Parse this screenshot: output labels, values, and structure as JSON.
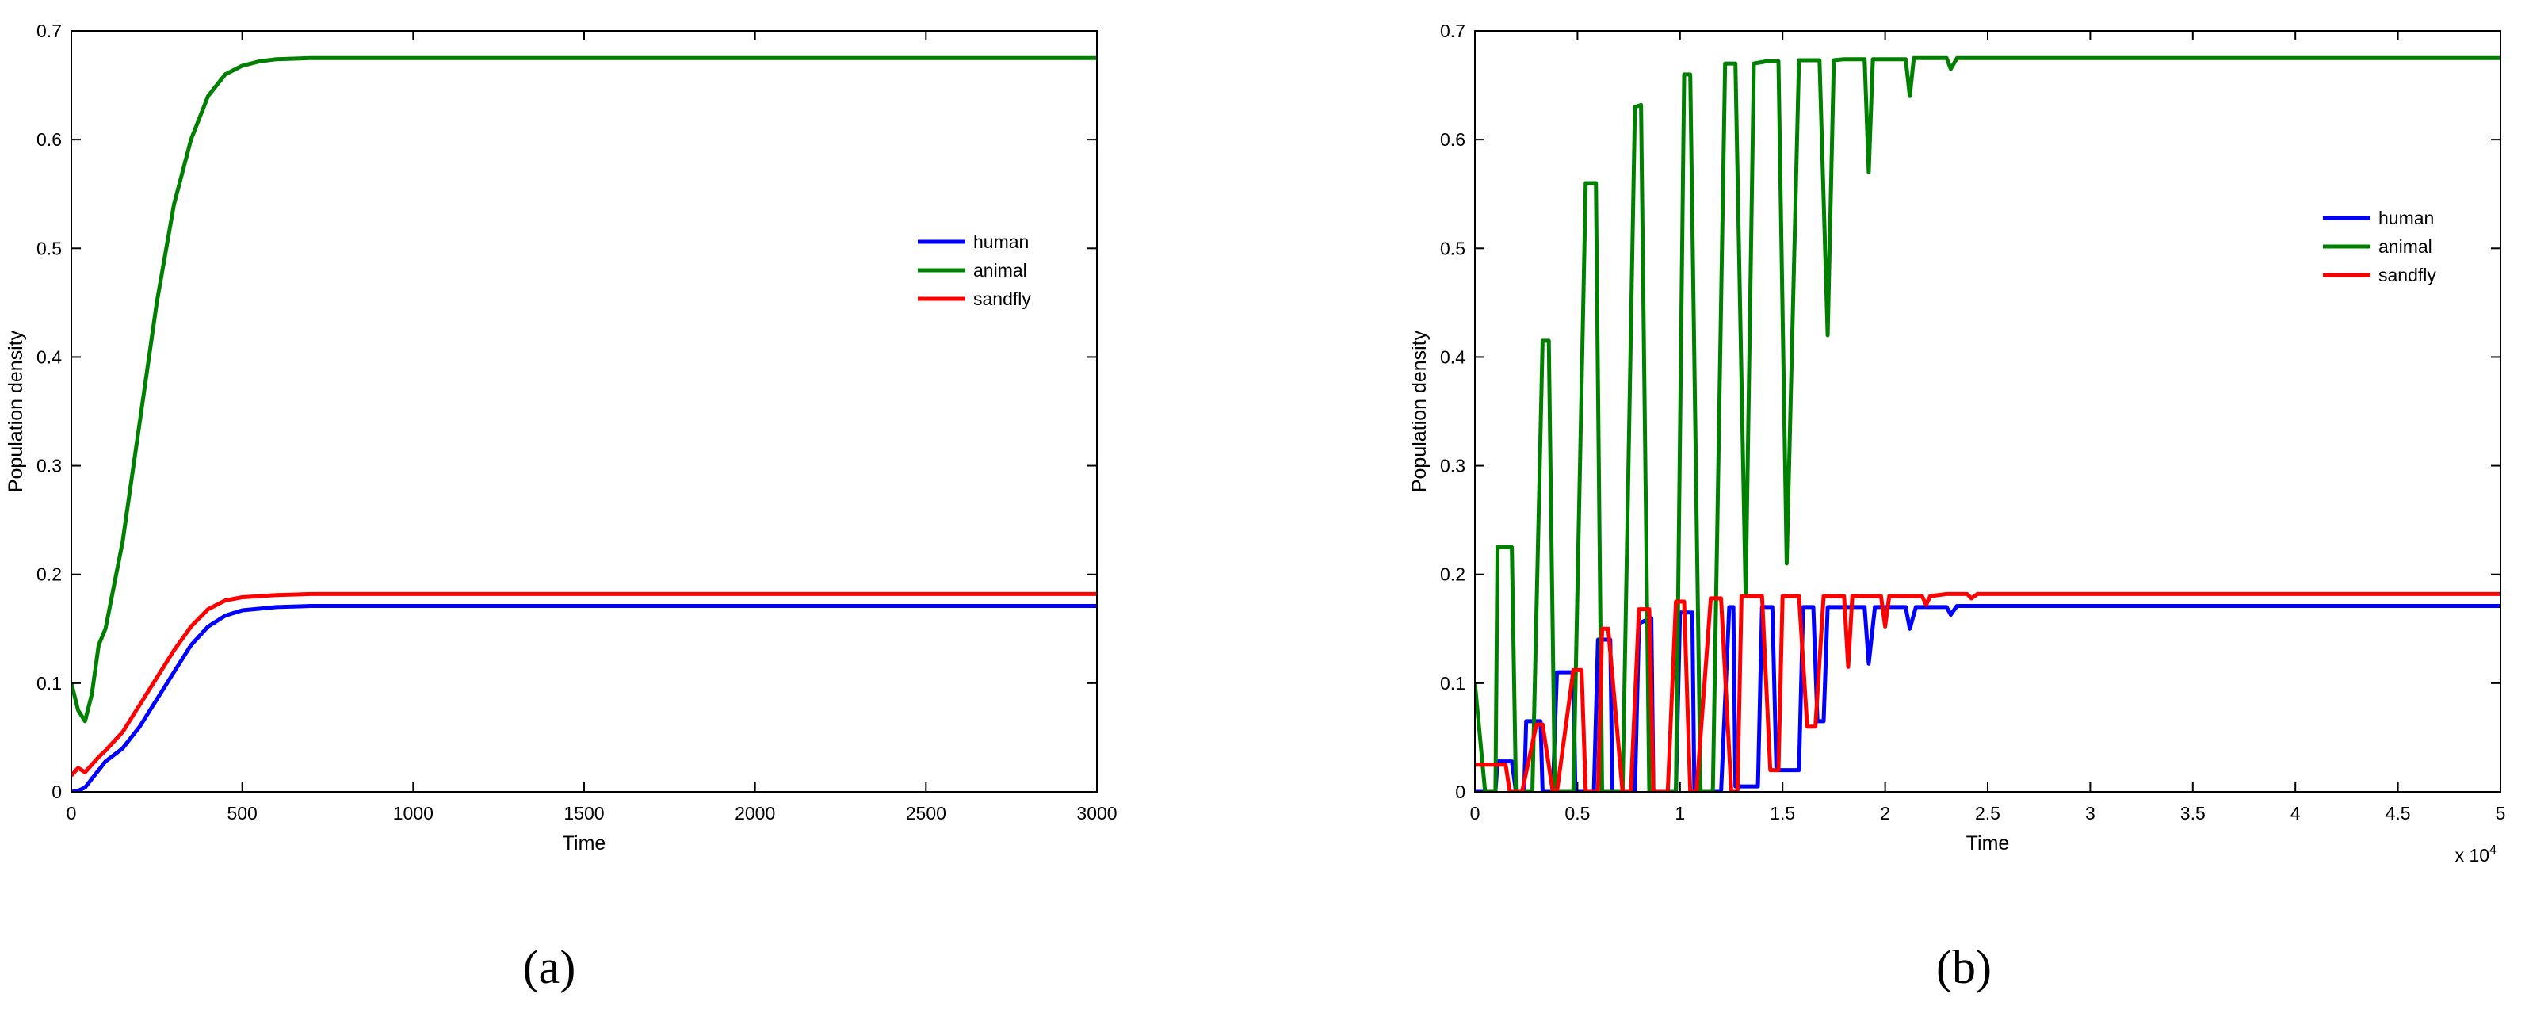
{
  "chart_data": [
    {
      "type": "line",
      "panel_label": "(a)",
      "title": "",
      "xlabel": "Time",
      "ylabel": "Population density",
      "xlim": [
        0,
        3000
      ],
      "ylim": [
        0,
        0.7
      ],
      "xticks": [
        0,
        500,
        1000,
        1500,
        2000,
        2500,
        3000
      ],
      "xtick_labels": [
        "0",
        "500",
        "1000",
        "1500",
        "2000",
        "2500",
        "3000"
      ],
      "yticks": [
        0,
        0.1,
        0.2,
        0.3,
        0.4,
        0.5,
        0.6,
        0.7
      ],
      "ytick_labels": [
        "0",
        "0.1",
        "0.2",
        "0.3",
        "0.4",
        "0.5",
        "0.6",
        "0.7"
      ],
      "x_exponent_label": "",
      "grid": false,
      "legend_position": "right",
      "series": [
        {
          "name": "human",
          "color": "#0000ff",
          "x": [
            0,
            20,
            40,
            60,
            80,
            100,
            150,
            200,
            250,
            300,
            350,
            400,
            450,
            500,
            600,
            700,
            800,
            1000,
            3000
          ],
          "y": [
            0,
            0.001,
            0.004,
            0.012,
            0.02,
            0.028,
            0.04,
            0.06,
            0.085,
            0.11,
            0.135,
            0.152,
            0.162,
            0.167,
            0.17,
            0.171,
            0.171,
            0.171,
            0.171
          ]
        },
        {
          "name": "animal",
          "color": "#008000",
          "x": [
            0,
            20,
            40,
            60,
            80,
            100,
            150,
            200,
            250,
            300,
            350,
            400,
            450,
            500,
            550,
            600,
            700,
            800,
            1000,
            3000
          ],
          "y": [
            0.1,
            0.075,
            0.065,
            0.09,
            0.135,
            0.15,
            0.23,
            0.34,
            0.45,
            0.54,
            0.6,
            0.64,
            0.66,
            0.668,
            0.672,
            0.674,
            0.675,
            0.675,
            0.675,
            0.675
          ]
        },
        {
          "name": "sandfly",
          "color": "#ff0000",
          "x": [
            0,
            20,
            40,
            60,
            80,
            100,
            150,
            200,
            250,
            300,
            350,
            400,
            450,
            500,
            600,
            700,
            800,
            1000,
            3000
          ],
          "y": [
            0.015,
            0.022,
            0.018,
            0.025,
            0.032,
            0.038,
            0.055,
            0.08,
            0.105,
            0.13,
            0.152,
            0.168,
            0.176,
            0.179,
            0.181,
            0.182,
            0.182,
            0.182,
            0.182
          ]
        }
      ]
    },
    {
      "type": "line",
      "panel_label": "(b)",
      "title": "",
      "xlabel": "Time",
      "ylabel": "Population density",
      "xlim": [
        0,
        50000
      ],
      "ylim": [
        0,
        0.7
      ],
      "xticks": [
        0,
        5000,
        10000,
        15000,
        20000,
        25000,
        30000,
        35000,
        40000,
        45000,
        50000
      ],
      "xtick_labels": [
        "0",
        "0.5",
        "1",
        "1.5",
        "2",
        "2.5",
        "3",
        "3.5",
        "4",
        "4.5",
        "5"
      ],
      "yticks": [
        0,
        0.1,
        0.2,
        0.3,
        0.4,
        0.5,
        0.6,
        0.7
      ],
      "ytick_labels": [
        "0",
        "0.1",
        "0.2",
        "0.3",
        "0.4",
        "0.5",
        "0.6",
        "0.7"
      ],
      "x_exponent_label": "x 10",
      "x_exponent_power": "4",
      "grid": false,
      "legend_position": "right",
      "series": [
        {
          "name": "human",
          "color": "#0000ff",
          "x": [
            0,
            1000,
            1100,
            1800,
            2000,
            2400,
            2500,
            3200,
            3300,
            3800,
            4000,
            4800,
            4900,
            5800,
            6000,
            6600,
            6700,
            7800,
            8000,
            8600,
            8700,
            9800,
            10000,
            10600,
            10700,
            12000,
            12400,
            12600,
            12700,
            13800,
            14000,
            14500,
            14700,
            15800,
            16000,
            16500,
            16700,
            17000,
            17200,
            18000,
            19000,
            19200,
            19500,
            20000,
            21000,
            21200,
            21500,
            23000,
            23200,
            23500,
            25000,
            50000
          ],
          "y": [
            0,
            0,
            0.028,
            0.028,
            0,
            0,
            0.065,
            0.065,
            0,
            0,
            0.11,
            0.11,
            0,
            0,
            0.14,
            0.14,
            0,
            0,
            0.155,
            0.16,
            0,
            0,
            0.165,
            0.165,
            0,
            0,
            0.17,
            0.17,
            0.005,
            0.005,
            0.17,
            0.17,
            0.02,
            0.02,
            0.17,
            0.17,
            0.065,
            0.065,
            0.17,
            0.17,
            0.17,
            0.118,
            0.17,
            0.17,
            0.17,
            0.15,
            0.17,
            0.17,
            0.163,
            0.171,
            0.171,
            0.171
          ]
        },
        {
          "name": "animal",
          "color": "#008000",
          "x": [
            0,
            500,
            1000,
            1100,
            1800,
            2000,
            2200,
            2800,
            3300,
            3600,
            3900,
            4200,
            4800,
            5400,
            5900,
            6200,
            6500,
            7200,
            7800,
            8100,
            8500,
            9000,
            9800,
            10200,
            10500,
            11000,
            11600,
            12200,
            12700,
            13200,
            13600,
            14200,
            14800,
            15200,
            15800,
            16300,
            16800,
            17200,
            17500,
            18000,
            19000,
            19200,
            19400,
            20000,
            21000,
            21200,
            21400,
            22500,
            23000,
            23200,
            23500,
            25000,
            50000
          ],
          "y": [
            0.1,
            0.0,
            0.0,
            0.225,
            0.225,
            0.0,
            0.0,
            0.0,
            0.415,
            0.415,
            0.0,
            0.0,
            0.0,
            0.56,
            0.56,
            0.0,
            0.0,
            0.0,
            0.63,
            0.632,
            0.0,
            0.0,
            0.0,
            0.66,
            0.66,
            0.0,
            0.0,
            0.67,
            0.67,
            0.18,
            0.67,
            0.672,
            0.672,
            0.21,
            0.673,
            0.673,
            0.673,
            0.42,
            0.673,
            0.674,
            0.674,
            0.57,
            0.674,
            0.674,
            0.674,
            0.64,
            0.675,
            0.675,
            0.675,
            0.665,
            0.675,
            0.675,
            0.675
          ]
        },
        {
          "name": "sandfly",
          "color": "#ff0000",
          "x": [
            0,
            1500,
            1700,
            2300,
            3000,
            3300,
            3800,
            4000,
            4800,
            5200,
            5400,
            6000,
            6200,
            6500,
            7200,
            7600,
            8000,
            8500,
            8700,
            9400,
            9800,
            10200,
            10500,
            10800,
            11500,
            12000,
            12500,
            12800,
            13000,
            14000,
            14400,
            14800,
            15000,
            15800,
            16200,
            16600,
            17000,
            17500,
            18000,
            18200,
            18400,
            19000,
            19800,
            20000,
            20200,
            21000,
            21800,
            22000,
            22200,
            23000,
            24000,
            24200,
            24500,
            50000
          ],
          "y": [
            0.025,
            0.025,
            0.0,
            0.0,
            0.062,
            0.062,
            0.0,
            0.0,
            0.112,
            0.112,
            0.0,
            0.0,
            0.15,
            0.15,
            0.0,
            0.0,
            0.168,
            0.168,
            0.0,
            0.0,
            0.175,
            0.175,
            0.0,
            0.0,
            0.178,
            0.178,
            0.0,
            0.0,
            0.18,
            0.18,
            0.02,
            0.02,
            0.18,
            0.18,
            0.06,
            0.06,
            0.18,
            0.18,
            0.18,
            0.115,
            0.18,
            0.18,
            0.18,
            0.152,
            0.18,
            0.18,
            0.18,
            0.172,
            0.18,
            0.182,
            0.182,
            0.178,
            0.182,
            0.182
          ]
        }
      ]
    }
  ]
}
